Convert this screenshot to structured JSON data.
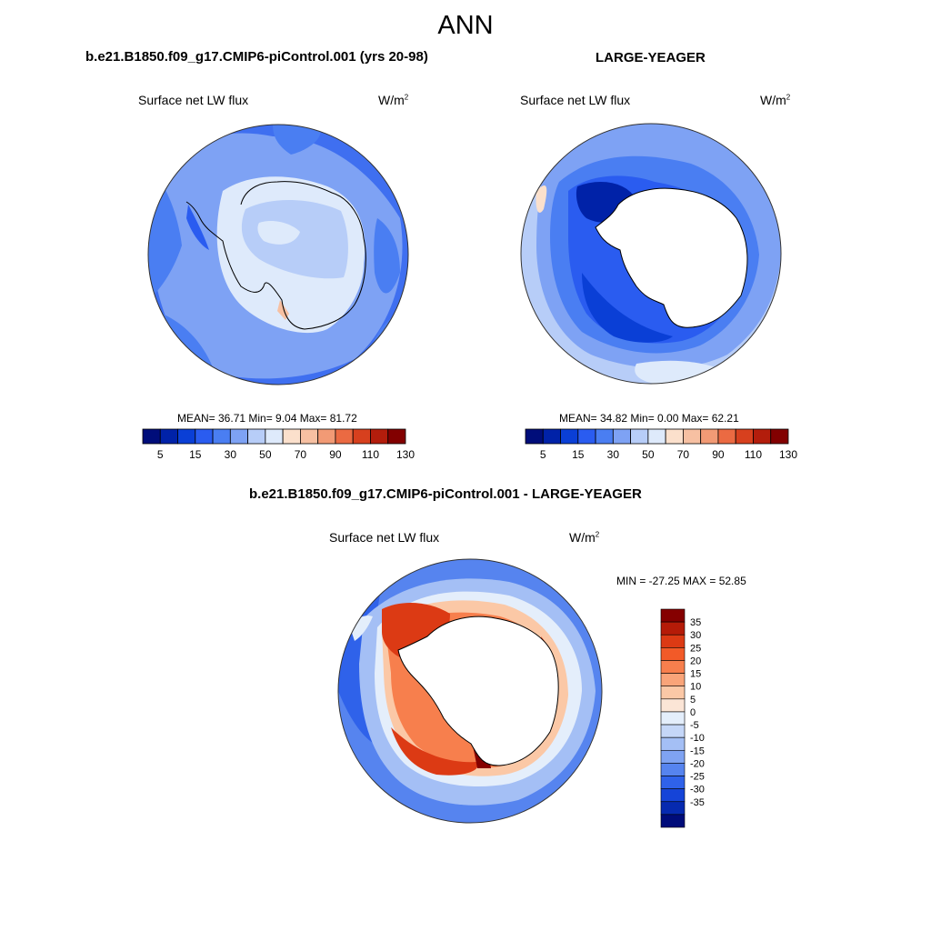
{
  "title": "ANN",
  "panels": [
    {
      "header": "b.e21.B1850.f09_g17.CMIP6-piControl.001 (yrs 20-98)",
      "variable": "Surface net LW flux",
      "units_base": "W/m",
      "units_exp": "2",
      "stats": "MEAN=  36.71  Min=   9.04  Max=  81.72"
    },
    {
      "header": "LARGE-YEAGER",
      "variable": "Surface net LW flux",
      "units_base": "W/m",
      "units_exp": "2",
      "stats": "MEAN=  34.82  Min=   0.00  Max=  62.21"
    },
    {
      "header": "b.e21.B1850.f09_g17.CMIP6-piControl.001 - LARGE-YEAGER",
      "variable": "Surface net LW flux",
      "units_base": "W/m",
      "units_exp": "2",
      "stats": "MIN = -27.25 MAX =  52.85"
    }
  ],
  "chart_data": [
    {
      "type": "heatmap",
      "projection": "south-polar-stereographic",
      "title": "b.e21.B1850.f09_g17.CMIP6-piControl.001 (yrs 20-98)",
      "mean": 36.71,
      "min": 9.04,
      "max": 81.72,
      "colorbar_levels": [
        5,
        10,
        15,
        20,
        30,
        40,
        50,
        60,
        70,
        80,
        90,
        100,
        110,
        120,
        130
      ],
      "colorbar_tick_labels": [
        "5",
        "15",
        "30",
        "50",
        "70",
        "90",
        "110",
        "130"
      ]
    },
    {
      "type": "heatmap",
      "projection": "south-polar-stereographic",
      "title": "LARGE-YEAGER",
      "mean": 34.82,
      "min": 0.0,
      "max": 62.21,
      "colorbar_levels": [
        5,
        10,
        15,
        20,
        30,
        40,
        50,
        60,
        70,
        80,
        90,
        100,
        110,
        120,
        130
      ],
      "colorbar_tick_labels": [
        "5",
        "15",
        "30",
        "50",
        "70",
        "90",
        "110",
        "130"
      ]
    },
    {
      "type": "heatmap",
      "projection": "south-polar-stereographic",
      "title": "b.e21.B1850.f09_g17.CMIP6-piControl.001 - LARGE-YEAGER",
      "min": -27.25,
      "max": 52.85,
      "colorbar_tick_labels": [
        "35",
        "30",
        "25",
        "20",
        "15",
        "10",
        "5",
        "0",
        "-5",
        "-10",
        "-15",
        "-20",
        "-25",
        "-30",
        "-35"
      ]
    }
  ],
  "colors": {
    "abs_palette": [
      "#000d7a",
      "#0022a8",
      "#0a3fd6",
      "#2a5cf0",
      "#4a7ef2",
      "#7ea2f4",
      "#b7cdf8",
      "#deeafb",
      "#fbe0cc",
      "#f7c0a2",
      "#f29a75",
      "#eb6a42",
      "#d7401e",
      "#b31d0c",
      "#820000"
    ],
    "diff_palette": [
      "#850000",
      "#b51b08",
      "#dc3a14",
      "#f25a28",
      "#f77f4d",
      "#f9a479",
      "#fbc8a6",
      "#fbe5d6",
      "#e4eefb",
      "#c5d7f8",
      "#a4bff5",
      "#7fa3f2",
      "#5684ef",
      "#2f62ea",
      "#1544d8",
      "#062ab0",
      "#000c7a"
    ]
  }
}
